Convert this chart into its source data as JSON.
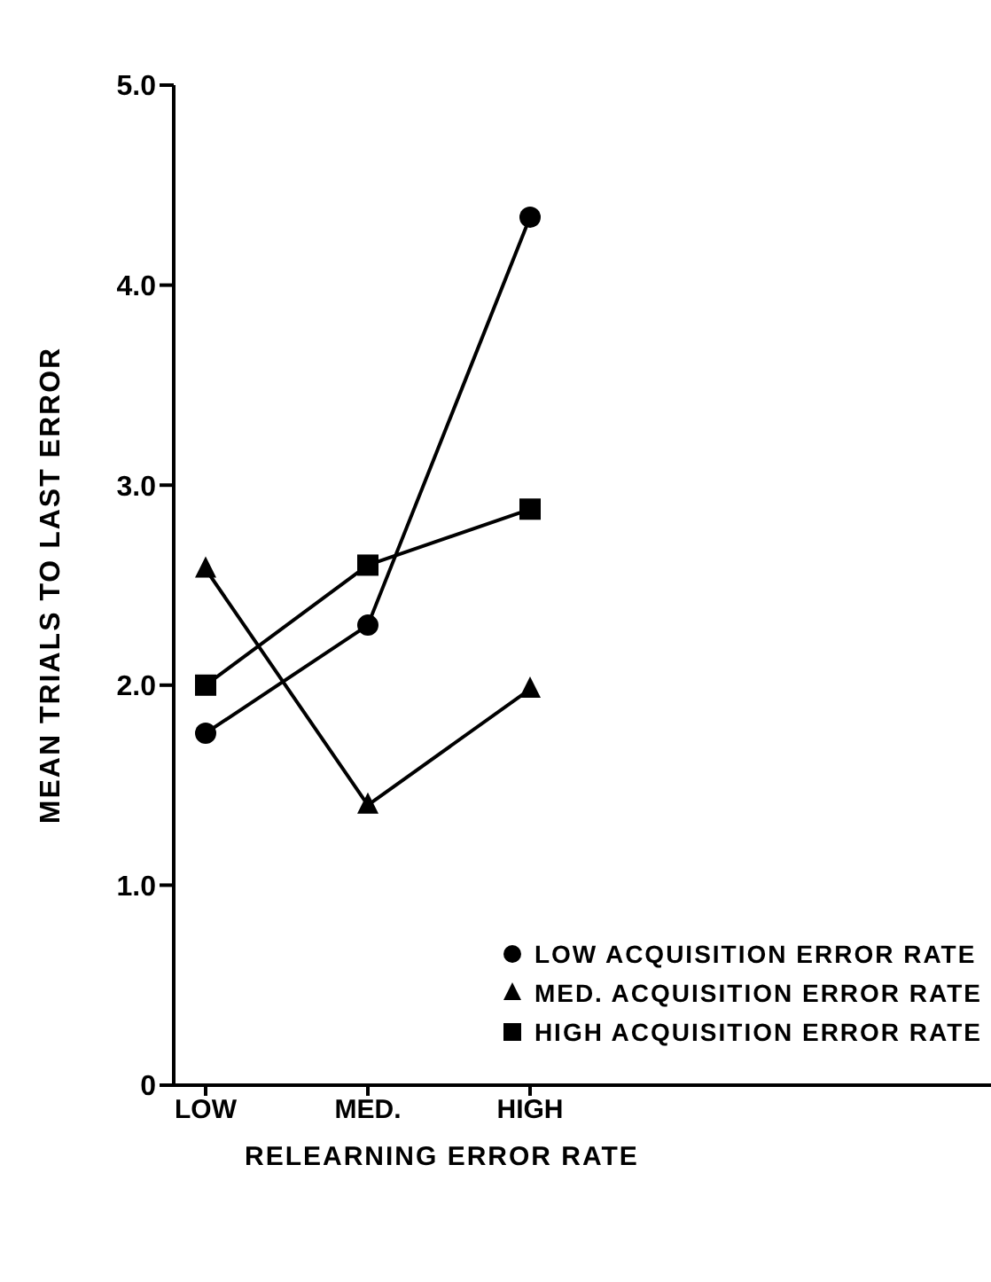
{
  "chart_data": {
    "type": "line",
    "xlabel": "RELEARNING ERROR RATE",
    "ylabel": "MEAN TRIALS TO LAST ERROR",
    "categories": [
      "LOW",
      "MED.",
      "HIGH"
    ],
    "series": [
      {
        "name": "LOW ACQUISITION ERROR RATE",
        "color": "#000000",
        "marker": "circle",
        "values": [
          1.76,
          2.3,
          4.34
        ]
      },
      {
        "name": "MED. ACQUISITION ERROR RATE",
        "color": "#000000",
        "marker": "triangle",
        "values": [
          2.58,
          1.4,
          1.98
        ]
      },
      {
        "name": "HIGH ACQUISITION ERROR RATE",
        "color": "#000000",
        "marker": "square",
        "values": [
          2.0,
          2.6,
          2.88
        ]
      }
    ],
    "ylim": [
      0,
      5
    ],
    "yticks": [
      0,
      {
        "value": 1,
        "label": "1.0"
      },
      {
        "value": 2,
        "label": "2.0"
      },
      {
        "value": 3,
        "label": "3.0"
      },
      {
        "value": 4,
        "label": "4.0"
      },
      {
        "value": 5,
        "label": "5.0"
      }
    ],
    "grid": false,
    "legend": "bottom right",
    "line_style": "solid"
  }
}
